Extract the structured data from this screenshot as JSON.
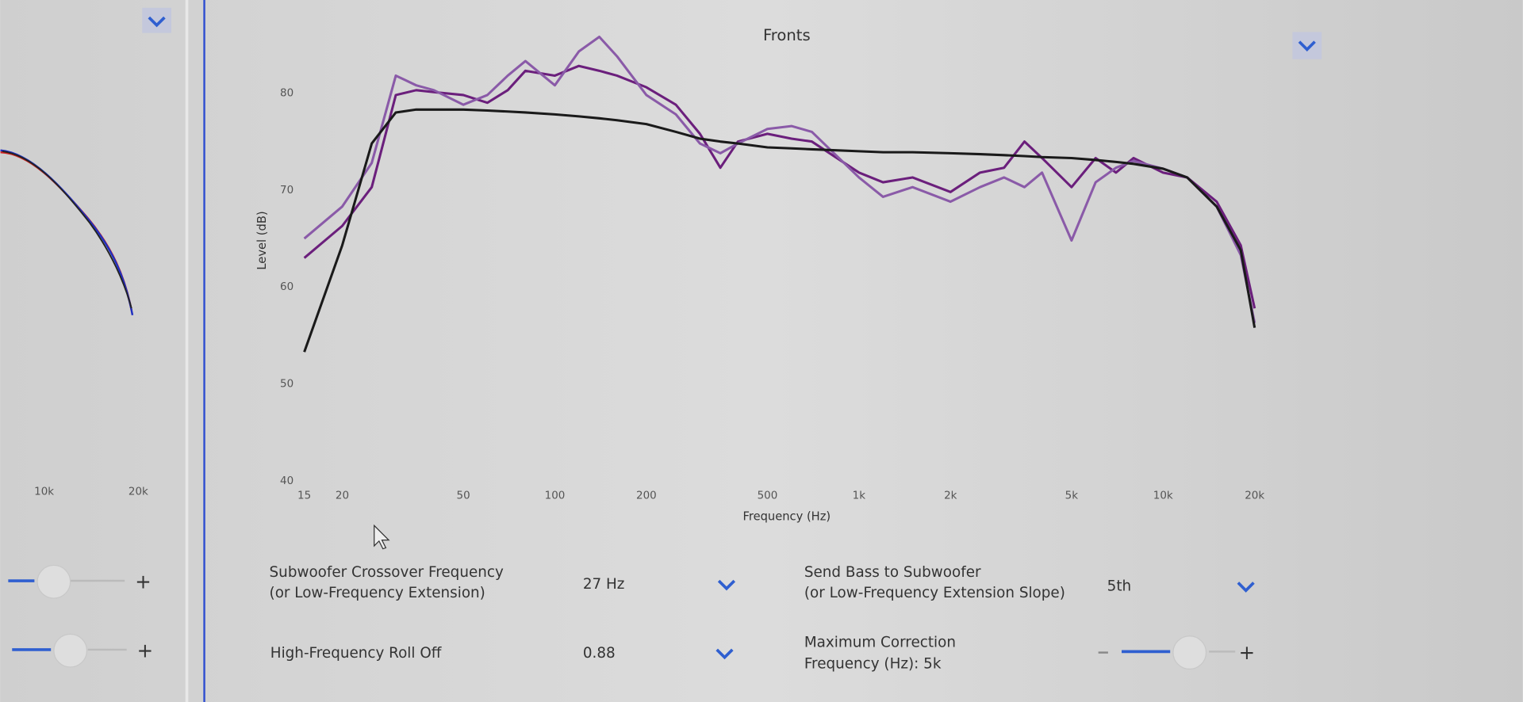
{
  "chart_data": {
    "type": "line",
    "title": "Fronts",
    "x_label": "Frequency (Hz)",
    "y_label": "Level (dB)",
    "x_scale": "log",
    "x": [
      15,
      20,
      25,
      30,
      35,
      40,
      50,
      60,
      70,
      80,
      100,
      120,
      140,
      160,
      200,
      250,
      300,
      350,
      400,
      500,
      600,
      700,
      1000,
      1200,
      1500,
      2000,
      2500,
      3000,
      3500,
      4000,
      5000,
      6000,
      7000,
      8000,
      10000,
      12000,
      15000,
      18000,
      20000
    ],
    "series": [
      {
        "color": "#6b1f7c",
        "values": [
          63,
          66.3,
          70.3,
          79.8,
          80.3,
          80.1,
          79.8,
          79,
          80.3,
          82.3,
          81.8,
          82.8,
          82.3,
          81.8,
          80.6,
          78.8,
          75.8,
          72.3,
          75,
          75.8,
          75.3,
          75,
          71.8,
          70.8,
          71.3,
          69.8,
          71.8,
          72.3,
          75,
          73.3,
          70.3,
          73.3,
          71.8,
          73.3,
          71.8,
          71.3,
          68.8,
          64.3,
          57.8
        ]
      },
      {
        "color": "#8a5aa8",
        "values": [
          65,
          68.3,
          72.8,
          81.8,
          80.8,
          80.3,
          78.8,
          79.8,
          81.8,
          83.3,
          80.8,
          84.3,
          85.8,
          83.8,
          79.8,
          77.8,
          74.8,
          73.8,
          74.8,
          76.3,
          76.6,
          76,
          71.3,
          69.3,
          70.3,
          68.8,
          70.3,
          71.3,
          70.3,
          71.8,
          64.8,
          70.8,
          72.3,
          73,
          72.2,
          71.3,
          68.3,
          63.3,
          56.3
        ]
      },
      {
        "color": "#1a1a1a",
        "values": [
          53.3,
          64.3,
          74.8,
          78,
          78.3,
          78.3,
          78.3,
          78.2,
          78.1,
          78,
          77.8,
          77.6,
          77.4,
          77.2,
          76.8,
          76,
          75.3,
          75,
          74.8,
          74.4,
          74.3,
          74.2,
          74,
          73.9,
          73.9,
          73.8,
          73.7,
          73.6,
          73.5,
          73.4,
          73.3,
          73.1,
          72.9,
          72.7,
          72.2,
          71.3,
          68.3,
          63.8,
          55.8
        ]
      }
    ],
    "xlim": [
      15,
      20000
    ],
    "ylim": [
      40,
      88
    ],
    "xticks": [
      15,
      20,
      50,
      100,
      200,
      500,
      {
        "value": 1000,
        "label": "1k"
      },
      {
        "value": 2000,
        "label": "2k"
      },
      {
        "value": 5000,
        "label": "5k"
      },
      {
        "value": 10000,
        "label": "10k"
      },
      {
        "value": 20000,
        "label": "20k"
      }
    ],
    "yticks": [
      40,
      50,
      60,
      70,
      80
    ]
  },
  "left_panel": {
    "xticks": [
      "10k",
      "20k"
    ]
  },
  "controls": [
    {
      "label": [
        "Subwoofer Crossover Frequency",
        "(or Low-Frequency Extension)"
      ],
      "value": "27 Hz"
    },
    {
      "label": [
        "Send Bass to Subwoofer",
        "(or Low-Frequency Extension Slope)"
      ],
      "value": "5th"
    },
    {
      "label": [
        "High-Frequency Roll Off"
      ],
      "value": "0.88"
    },
    {
      "label": [
        "Maximum Correction",
        "Frequency (Hz): 5k"
      ]
    }
  ]
}
